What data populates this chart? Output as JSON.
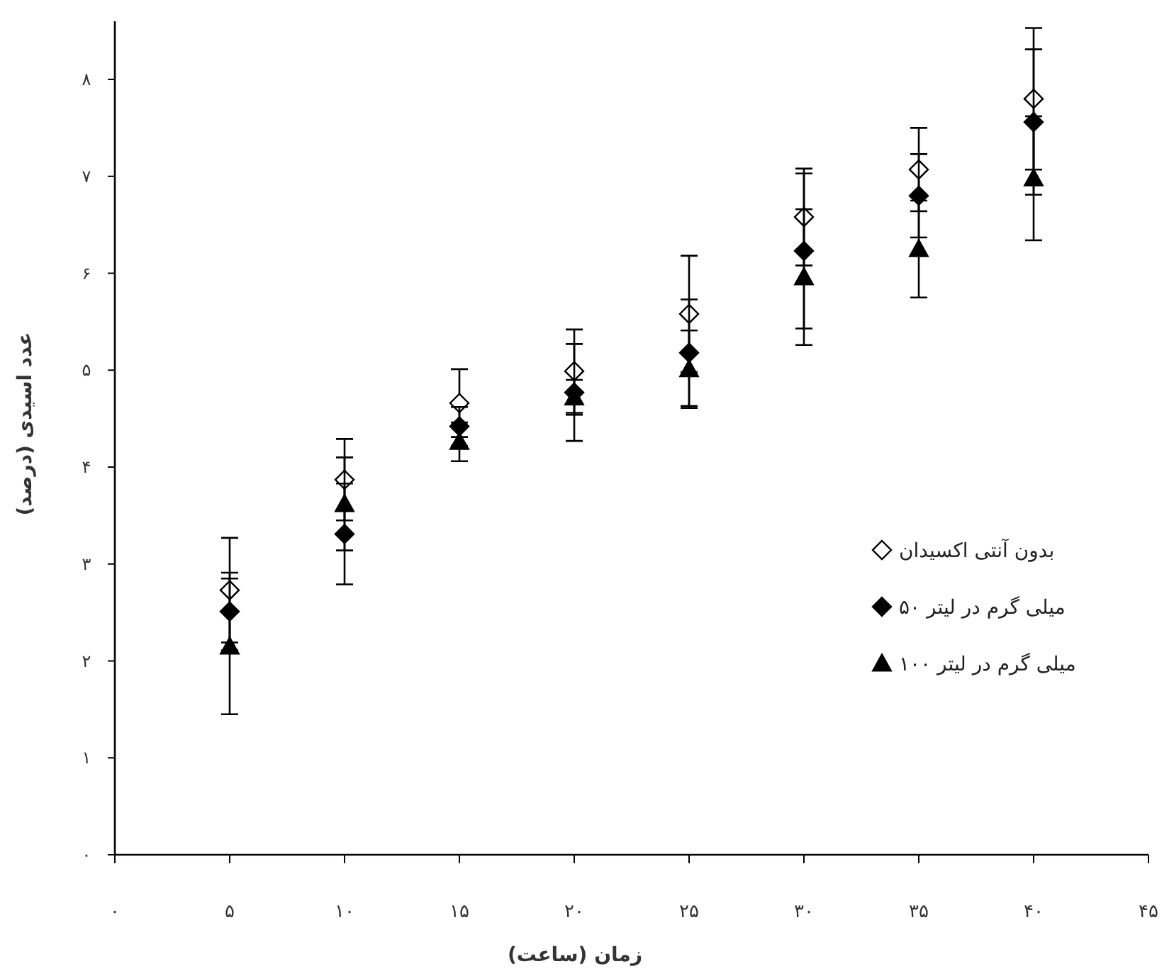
{
  "chart_data": {
    "type": "scatter",
    "xlabel": "زمان (ساعت)",
    "ylabel": "عدد اسیدی (درصد)",
    "x": [
      5,
      10,
      15,
      20,
      25,
      30,
      35,
      40
    ],
    "series": [
      {
        "name": "بدون آنتی اکسیدان",
        "color": "#ffffff",
        "marker": "diamond",
        "values": [
          2.73,
          3.87,
          4.66,
          4.99,
          5.58,
          6.58,
          7.07,
          7.8
        ],
        "errors": [
          0.54,
          0.42,
          0.35,
          0.43,
          0.6,
          0.5,
          0.43,
          0.73
        ]
      },
      {
        "name": "میلی گرم در لیتر ۵۰",
        "color": "#000000",
        "marker": "diamond",
        "values": [
          2.51,
          3.31,
          4.42,
          4.77,
          5.18,
          6.23,
          6.8,
          7.56
        ],
        "errors": [
          0.4,
          0.52,
          0.2,
          0.5,
          0.55,
          0.8,
          0.43,
          0.75
        ]
      },
      {
        "name": "میلی گرم در لیتر ۱۰۰",
        "color": "#000000",
        "marker": "triangle",
        "values": [
          2.15,
          3.62,
          4.26,
          4.72,
          5.01,
          5.96,
          6.25,
          6.98
        ],
        "errors": [
          0.7,
          0.48,
          0.2,
          0.18,
          0.4,
          0.7,
          0.5,
          0.64
        ]
      }
    ],
    "xlim": [
      0,
      45
    ],
    "ylim": [
      0,
      8.6
    ],
    "xticks": [
      {
        "value": 0,
        "label": "۰"
      },
      {
        "value": 5,
        "label": "۵"
      },
      {
        "value": 10,
        "label": "۱۰"
      },
      {
        "value": 15,
        "label": "۱۵"
      },
      {
        "value": 20,
        "label": "۲۰"
      },
      {
        "value": 25,
        "label": "۲۵"
      },
      {
        "value": 30,
        "label": "۳۰"
      },
      {
        "value": 35,
        "label": "۳۵"
      },
      {
        "value": 40,
        "label": "۴۰"
      },
      {
        "value": 45,
        "label": "۴۵"
      }
    ],
    "yticks": [
      {
        "value": 0,
        "label": "۰"
      },
      {
        "value": 1,
        "label": "۱"
      },
      {
        "value": 2,
        "label": "۲"
      },
      {
        "value": 3,
        "label": "۳"
      },
      {
        "value": 4,
        "label": "۴"
      },
      {
        "value": 5,
        "label": "۵"
      },
      {
        "value": 6,
        "label": "۶"
      },
      {
        "value": 7,
        "label": "۷"
      },
      {
        "value": 8,
        "label": "۸"
      }
    ],
    "grid": false,
    "legend": "right"
  }
}
